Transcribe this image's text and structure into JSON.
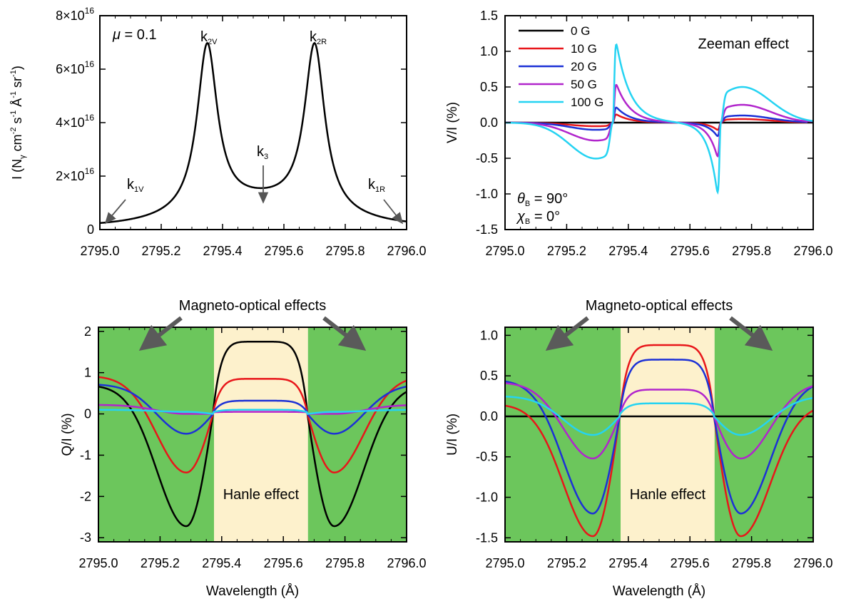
{
  "figure": {
    "colors": {
      "g0": "#000000",
      "g10": "#e8161a",
      "g20": "#1c31d6",
      "g50": "#b125cc",
      "g100": "#25d3f2",
      "green": "#6cc65c",
      "cream": "#fdf1cc"
    }
  },
  "chart_data": [
    {
      "id": "intensity",
      "type": "line",
      "ylabel_parts": [
        "I (N",
        "γ",
        " cm",
        "-2",
        " s",
        "-1",
        " Å",
        "-1",
        " sr",
        "-1",
        ")"
      ],
      "xlim": [
        2795.0,
        2796.0
      ],
      "ylim": [
        0,
        8e+16
      ],
      "x_ticks": [
        "2795.0",
        "2795.2",
        "2795.4",
        "2795.6",
        "2795.8",
        "2796.0"
      ],
      "y_ticks": [
        {
          "value": 0,
          "base": "0",
          "exp": ""
        },
        {
          "value": 2e+16,
          "base": "2×10",
          "exp": "16"
        },
        {
          "value": 4e+16,
          "base": "4×10",
          "exp": "16"
        },
        {
          "value": 6e+16,
          "base": "6×10",
          "exp": "16"
        },
        {
          "value": 8e+16,
          "base": "8×10",
          "exp": "16"
        }
      ],
      "mu_symbol": "μ",
      "mu_value": " = 0.1",
      "model": {
        "baseline": 1000000000000000.0,
        "center": 2795.525,
        "peak_offset": 0.175,
        "dip": 1e+16,
        "peak": 6.8e+16
      },
      "annotations": [
        {
          "key": "k1v",
          "main": "k",
          "sub": "1V",
          "x": 2795.0,
          "y": 1000000000000000.0
        },
        {
          "key": "k2v",
          "main": "k",
          "sub": "2V",
          "x": 2795.35,
          "y": 6.8e+16
        },
        {
          "key": "k3",
          "main": "k",
          "sub": "3",
          "x": 2795.525,
          "y": 1e+16
        },
        {
          "key": "k2r",
          "main": "k",
          "sub": "2R",
          "x": 2795.7,
          "y": 6.8e+16
        },
        {
          "key": "k1r",
          "main": "k",
          "sub": "1R",
          "x": 2796.0,
          "y": 1000000000000000.0
        }
      ]
    },
    {
      "id": "stokes_v",
      "type": "line",
      "ylabel": "V/I (%)",
      "xlim": [
        2795.0,
        2796.0
      ],
      "ylim": [
        -1.5,
        1.5
      ],
      "x_ticks": [
        "2795.0",
        "2795.2",
        "2795.4",
        "2795.6",
        "2795.8",
        "2796.0"
      ],
      "y_ticks": [
        "-1.5",
        "-1.0",
        "-0.5",
        "0.0",
        "0.5",
        "1.0",
        "1.5"
      ],
      "title": "Zeeman effect",
      "theta_symbol": "θ",
      "theta_sub": "B",
      "theta_value": " = 90°",
      "chi_symbol": "χ",
      "chi_sub": "B",
      "chi_value": " = 0°",
      "legend_position": "top-left",
      "legend": [
        "0 G",
        "10 G",
        "20 G",
        "50 G",
        "100 G"
      ],
      "series": [
        {
          "name": "0 G",
          "color_key": "g0",
          "v_inner": 0.0,
          "v_outer": 0.0
        },
        {
          "name": "10 G",
          "color_key": "g10",
          "v_inner": 0.15,
          "v_outer": 0.05
        },
        {
          "name": "20 G",
          "color_key": "g20",
          "v_inner": 0.28,
          "v_outer": 0.1
        },
        {
          "name": "50 G",
          "color_key": "g50",
          "v_inner": 0.7,
          "v_outer": 0.25
        },
        {
          "name": "100 G",
          "color_key": "g100",
          "v_inner": 1.45,
          "v_outer": 0.5
        }
      ]
    },
    {
      "id": "stokes_q",
      "type": "line",
      "ylabel": "Q/I (%)",
      "xlabel": "Wavelength (Å)",
      "xlim": [
        2795.0,
        2796.0
      ],
      "ylim": [
        -3.1,
        2.1
      ],
      "x_ticks": [
        "2795.0",
        "2795.2",
        "2795.4",
        "2795.6",
        "2795.8",
        "2796.0"
      ],
      "y_ticks": [
        "-3",
        "-2",
        "-1",
        "0",
        "1",
        "2"
      ],
      "bands": {
        "inner": [
          2795.375,
          2795.68
        ]
      },
      "center_label": "Hanle effect",
      "top_label": "Magneto-optical effects",
      "series": [
        {
          "name": "0 G",
          "color_key": "g0",
          "edge": 0.7,
          "min": -2.72,
          "center": 1.75
        },
        {
          "name": "10 G",
          "color_key": "g10",
          "edge": 0.92,
          "min": -1.42,
          "center": 0.85
        },
        {
          "name": "20 G",
          "color_key": "g20",
          "edge": 0.72,
          "min": -0.48,
          "center": 0.32
        },
        {
          "name": "50 G",
          "color_key": "g50",
          "edge": 0.22,
          "min": 0.0,
          "center": 0.05
        },
        {
          "name": "100 G",
          "color_key": "g100",
          "edge": 0.1,
          "min": 0.05,
          "center": 0.1
        }
      ]
    },
    {
      "id": "stokes_u",
      "type": "line",
      "ylabel": "U/I (%)",
      "xlabel": "Wavelength (Å)",
      "xlim": [
        2795.0,
        2796.0
      ],
      "ylim": [
        -1.55,
        1.1
      ],
      "x_ticks": [
        "2795.0",
        "2795.2",
        "2795.4",
        "2795.6",
        "2795.8",
        "2796.0"
      ],
      "y_ticks": [
        "-1.5",
        "-1.0",
        "-0.5",
        "0.0",
        "0.5",
        "1.0"
      ],
      "bands": {
        "inner": [
          2795.375,
          2795.68
        ]
      },
      "center_label": "Hanle effect",
      "top_label": "Magneto-optical effects",
      "series": [
        {
          "name": "0 G",
          "color_key": "g0",
          "edge": 0.0,
          "min": 0.0,
          "center": 0.0
        },
        {
          "name": "10 G",
          "color_key": "g10",
          "edge": 0.15,
          "min": -1.48,
          "center": 0.88
        },
        {
          "name": "20 G",
          "color_key": "g20",
          "edge": 0.45,
          "min": -1.2,
          "center": 0.7
        },
        {
          "name": "50 G",
          "color_key": "g50",
          "edge": 0.42,
          "min": -0.52,
          "center": 0.33
        },
        {
          "name": "100 G",
          "color_key": "g100",
          "edge": 0.25,
          "min": -0.23,
          "center": 0.16
        }
      ]
    }
  ]
}
